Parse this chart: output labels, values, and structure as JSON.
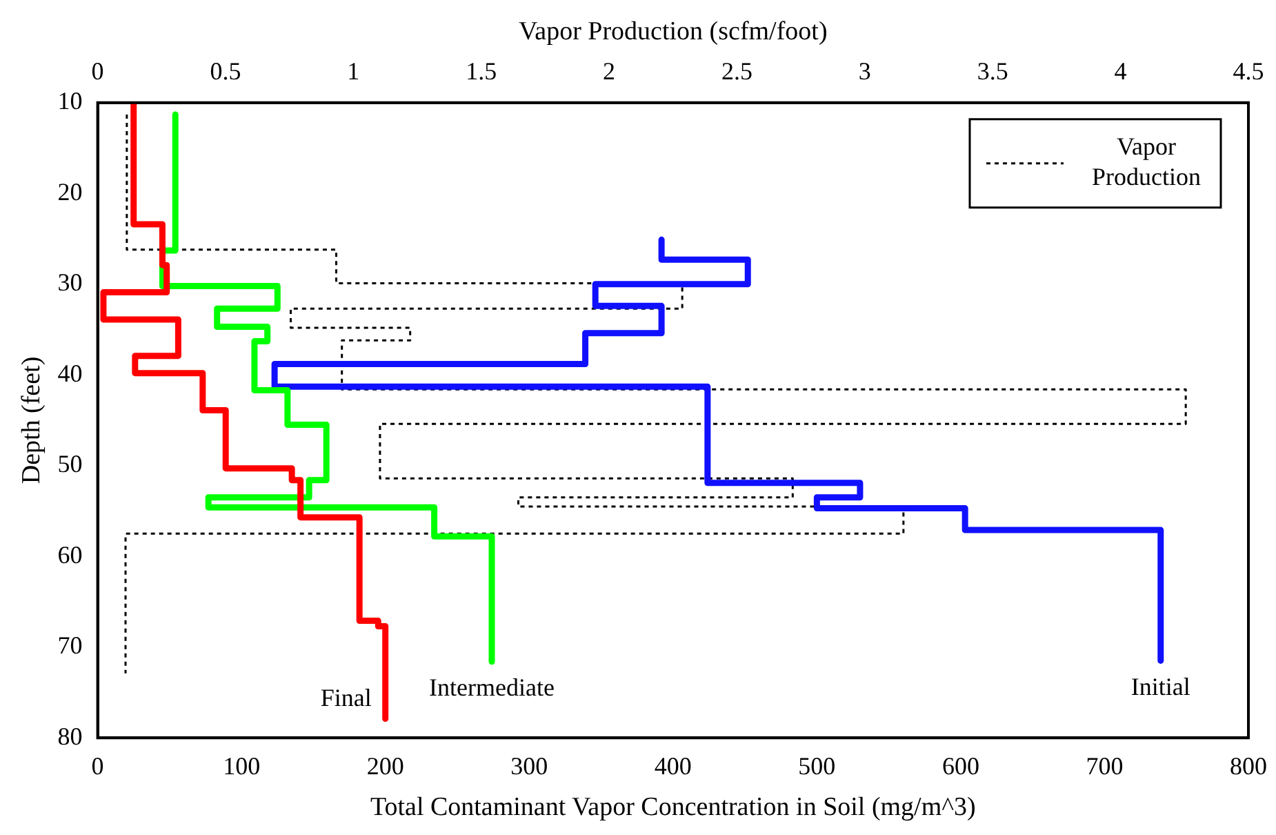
{
  "chart_data": {
    "type": "line",
    "xlabel": "Total Contaminant Vapor Concentration in Soil (mg/m^3)",
    "x2label": "Vapor Production (scfm/foot)",
    "ylabel": "Depth (feet)",
    "xlim": [
      0,
      800
    ],
    "xticks": [
      0,
      100,
      200,
      300,
      400,
      500,
      600,
      700,
      800
    ],
    "x2lim": [
      0,
      4.5
    ],
    "x2ticks": [
      0,
      0.5,
      1,
      1.5,
      2,
      2.5,
      3,
      3.5,
      4,
      4.5
    ],
    "ylim": [
      80,
      10
    ],
    "yticks": [
      10,
      20,
      30,
      40,
      50,
      60,
      70,
      80
    ],
    "grid": false,
    "legend": "top right",
    "marker": "none",
    "series": [
      {
        "name": "Final",
        "color": "#ff0000",
        "line_style": "solid",
        "x": [
          25,
          25,
          45,
          45,
          48,
          48,
          4,
          4,
          56,
          56,
          26,
          26,
          73,
          73,
          89,
          89,
          135,
          135,
          141,
          141,
          182,
          182,
          195,
          195,
          200,
          200
        ],
        "values": [
          10,
          23.4,
          23.4,
          27.9,
          27.9,
          30.9,
          30.9,
          33.9,
          33.9,
          37.9,
          37.9,
          39.8,
          39.8,
          43.9,
          43.9,
          50.3,
          50.3,
          51.6,
          51.6,
          55.7,
          55.7,
          67.1,
          67.1,
          67.7,
          67.7,
          77.9
        ]
      },
      {
        "name": "Intermediate",
        "color": "#00ff00",
        "line_style": "solid",
        "x": [
          54,
          54,
          45,
          45,
          125,
          125,
          83,
          83,
          118,
          118,
          109,
          109,
          132,
          132,
          159,
          159,
          147,
          147,
          77,
          77,
          234,
          234,
          274,
          274
        ],
        "values": [
          11.3,
          26.3,
          26.3,
          30.2,
          30.2,
          32.7,
          32.7,
          34.7,
          34.7,
          36.3,
          36.3,
          41.7,
          41.7,
          45.5,
          45.5,
          51.6,
          51.6,
          53.5,
          53.5,
          54.6,
          54.6,
          57.8,
          57.8,
          71.6
        ]
      },
      {
        "name": "Initial",
        "color": "#1010ff",
        "line_style": "solid",
        "x": [
          392,
          392,
          452,
          452,
          346,
          346,
          392,
          392,
          339,
          339,
          123,
          123,
          424,
          424,
          530,
          530,
          500,
          500,
          603,
          603,
          739,
          739
        ],
        "values": [
          25.1,
          27.3,
          27.3,
          30,
          30,
          32.4,
          32.4,
          35.4,
          35.4,
          38.8,
          38.8,
          41.3,
          41.3,
          51.9,
          51.9,
          53.5,
          53.5,
          54.7,
          54.7,
          57.1,
          57.1,
          71.5
        ]
      },
      {
        "name": "Vapor Production",
        "color": "#000000",
        "line_style": "dotted",
        "axis": "x2",
        "x": [
          0.114,
          0.114,
          0.933,
          0.933,
          2.286,
          2.286,
          0.755,
          0.755,
          1.222,
          1.222,
          0.955,
          0.955,
          4.255,
          4.255,
          1.104,
          1.104,
          2.718,
          2.718,
          1.645,
          1.645,
          3.151,
          3.151,
          0.109,
          0.109
        ],
        "values": [
          11.3,
          26.2,
          26.2,
          29.9,
          29.9,
          32.7,
          32.7,
          34.8,
          34.8,
          36.2,
          36.2,
          41.6,
          41.6,
          45.4,
          45.4,
          51.4,
          51.4,
          53.5,
          53.5,
          54.5,
          54.5,
          57.5,
          57.5,
          72.9
        ]
      }
    ]
  }
}
